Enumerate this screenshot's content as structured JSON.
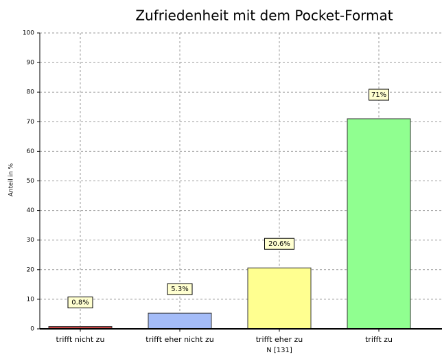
{
  "chart_data": {
    "type": "bar",
    "title": "Zufriedenheit mit dem Pocket-Format",
    "y_label": "Anteil in %",
    "note": "N [131]",
    "categories": [
      "trifft nicht zu",
      "trifft eher nicht zu",
      "trifft eher zu",
      "trifft zu"
    ],
    "values": [
      0.8,
      5.3,
      20.6,
      71
    ],
    "value_labels": [
      "0.8%",
      "5.3%",
      "20.6%",
      "71%"
    ],
    "colors": [
      "#c84040",
      "#a4bcf8",
      "#ffff90",
      "#90ff90"
    ],
    "ylim": [
      0,
      100
    ],
    "yticks": [
      0,
      10,
      20,
      30,
      40,
      50,
      60,
      70,
      80,
      90,
      100
    ],
    "grid": true
  }
}
